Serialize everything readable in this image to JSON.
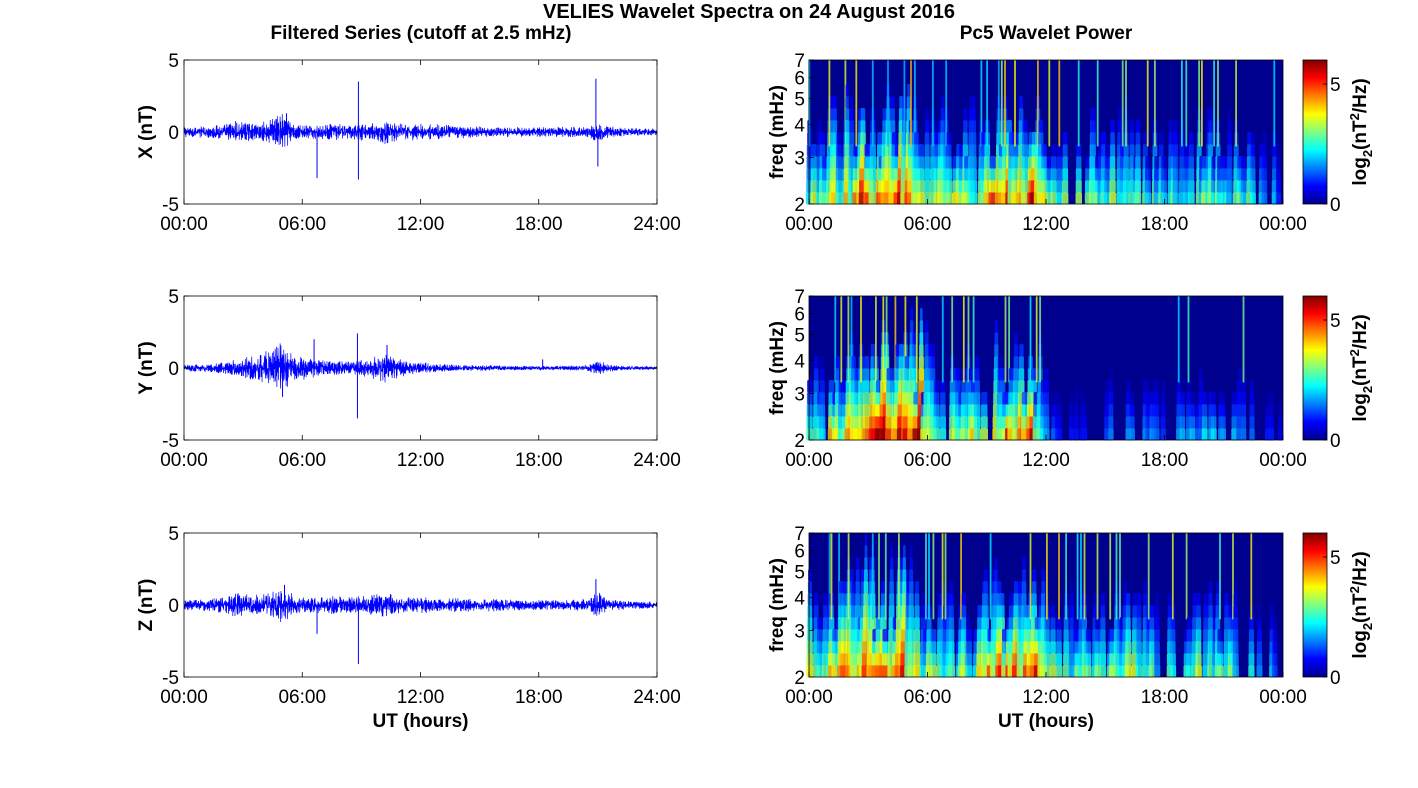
{
  "figure": {
    "title": "VELIES Wavelet Spectra on 24 August 2016",
    "left_column_title": "Filtered Series (cutoff at 2.5 mHz)",
    "right_column_title": "Pc5 Wavelet Power"
  },
  "chart_data": [
    {
      "type": "line",
      "panel": "time-series-x",
      "ylabel": "X (nT)",
      "xlabel": "",
      "ylim": [
        -5,
        5
      ],
      "yticks": [
        "-5",
        "0",
        "5"
      ],
      "xticks": [
        "00:00",
        "06:00",
        "12:00",
        "18:00",
        "24:00"
      ],
      "xrange_hours": [
        0,
        24
      ],
      "series": [
        {
          "color": "#0000ff",
          "envelope": [
            [
              0,
              0.3
            ],
            [
              1,
              0.35
            ],
            [
              2,
              0.45
            ],
            [
              2.6,
              0.7
            ],
            [
              3.5,
              0.5
            ],
            [
              4.3,
              0.7
            ],
            [
              5,
              1.1
            ],
            [
              5.6,
              0.5
            ],
            [
              6.5,
              0.4
            ],
            [
              7.5,
              0.5
            ],
            [
              8.5,
              0.45
            ],
            [
              9.5,
              0.55
            ],
            [
              10.2,
              0.75
            ],
            [
              11,
              0.5
            ],
            [
              12,
              0.5
            ],
            [
              13,
              0.45
            ],
            [
              14,
              0.4
            ],
            [
              15,
              0.35
            ],
            [
              16.5,
              0.3
            ],
            [
              17.5,
              0.3
            ],
            [
              18.5,
              0.3
            ],
            [
              19.5,
              0.3
            ],
            [
              20.5,
              0.35
            ],
            [
              21,
              0.7
            ],
            [
              21.5,
              0.35
            ],
            [
              22.5,
              0.25
            ],
            [
              24,
              0.2
            ]
          ],
          "spikes": [
            [
              6.75,
              -3.2
            ],
            [
              8.85,
              3.5
            ],
            [
              8.85,
              -3.3
            ],
            [
              20.9,
              3.7
            ],
            [
              21.0,
              -2.4
            ],
            [
              5.2,
              1.3
            ]
          ]
        }
      ]
    },
    {
      "type": "heatmap",
      "panel": "wavelet-x",
      "ylabel": "freq (mHz)",
      "xlabel": "",
      "ylim": [
        2,
        7
      ],
      "yticks": [
        "2",
        "3",
        "4",
        "5",
        "6",
        "7"
      ],
      "xticks": [
        "00:00",
        "06:00",
        "12:00",
        "18:00",
        "00:00"
      ],
      "xrange_hours": [
        0,
        24
      ],
      "colorbar": {
        "label": "log2(nT2/Hz)",
        "label_main": "log",
        "label_sub": "2",
        "label_rest": "(nT",
        "label_sup": "2",
        "label_end": "/Hz)",
        "ticks": [
          "0",
          "5"
        ],
        "range": [
          0,
          6
        ]
      },
      "level_profile": [
        [
          0,
          0.6
        ],
        [
          2,
          0.75
        ],
        [
          3,
          0.95
        ],
        [
          5,
          0.9
        ],
        [
          6,
          0.55
        ],
        [
          8,
          0.65
        ],
        [
          10,
          0.85
        ],
        [
          11.5,
          0.95
        ],
        [
          12,
          0.55
        ],
        [
          14,
          0.5
        ],
        [
          16,
          0.6
        ],
        [
          18,
          0.45
        ],
        [
          20,
          0.55
        ],
        [
          22,
          0.5
        ],
        [
          24,
          0.25
        ]
      ]
    },
    {
      "type": "line",
      "panel": "time-series-y",
      "ylabel": "Y (nT)",
      "xlabel": "",
      "ylim": [
        -5,
        5
      ],
      "yticks": [
        "-5",
        "0",
        "5"
      ],
      "xticks": [
        "00:00",
        "06:00",
        "12:00",
        "18:00",
        "24:00"
      ],
      "xrange_hours": [
        0,
        24
      ],
      "series": [
        {
          "color": "#0000ff",
          "envelope": [
            [
              0,
              0.2
            ],
            [
              1,
              0.25
            ],
            [
              2,
              0.35
            ],
            [
              3,
              0.6
            ],
            [
              4,
              0.9
            ],
            [
              5,
              1.6
            ],
            [
              5.5,
              0.8
            ],
            [
              6.5,
              0.6
            ],
            [
              7.5,
              0.45
            ],
            [
              8.5,
              0.4
            ],
            [
              9.5,
              0.6
            ],
            [
              10.3,
              0.9
            ],
            [
              11,
              0.5
            ],
            [
              12,
              0.35
            ],
            [
              13,
              0.25
            ],
            [
              14,
              0.2
            ],
            [
              16,
              0.15
            ],
            [
              18,
              0.12
            ],
            [
              20,
              0.15
            ],
            [
              21,
              0.4
            ],
            [
              22,
              0.15
            ],
            [
              24,
              0.1
            ]
          ],
          "spikes": [
            [
              6.6,
              2.0
            ],
            [
              8.8,
              2.4
            ],
            [
              8.8,
              -3.5
            ],
            [
              10.3,
              1.6
            ],
            [
              18.2,
              0.6
            ],
            [
              5.0,
              -2.0
            ]
          ]
        }
      ]
    },
    {
      "type": "heatmap",
      "panel": "wavelet-y",
      "ylabel": "freq (mHz)",
      "xlabel": "",
      "ylim": [
        2,
        7
      ],
      "yticks": [
        "2",
        "3",
        "4",
        "5",
        "6",
        "7"
      ],
      "xticks": [
        "00:00",
        "06:00",
        "12:00",
        "18:00",
        "00:00"
      ],
      "xrange_hours": [
        0,
        24
      ],
      "colorbar": {
        "label": "log2(nT2/Hz)",
        "label_main": "log",
        "label_sub": "2",
        "label_rest": "(nT",
        "label_sup": "2",
        "label_end": "/Hz)",
        "ticks": [
          "0",
          "5"
        ],
        "range": [
          0,
          6
        ]
      },
      "level_profile": [
        [
          0,
          0.55
        ],
        [
          2,
          0.7
        ],
        [
          3.5,
          0.95
        ],
        [
          5,
          1.0
        ],
        [
          5.8,
          0.95
        ],
        [
          6.5,
          0.5
        ],
        [
          8,
          0.6
        ],
        [
          10,
          0.85
        ],
        [
          11.5,
          0.9
        ],
        [
          12,
          0.5
        ],
        [
          12.5,
          0.15
        ],
        [
          14,
          0.15
        ],
        [
          16,
          0.3
        ],
        [
          18,
          0.25
        ],
        [
          20,
          0.4
        ],
        [
          22,
          0.3
        ],
        [
          24,
          0.1
        ]
      ]
    },
    {
      "type": "line",
      "panel": "time-series-z",
      "ylabel": "Z (nT)",
      "xlabel": "UT (hours)",
      "ylim": [
        -5,
        5
      ],
      "yticks": [
        "-5",
        "0",
        "5"
      ],
      "xticks": [
        "00:00",
        "06:00",
        "12:00",
        "18:00",
        "24:00"
      ],
      "xrange_hours": [
        0,
        24
      ],
      "series": [
        {
          "color": "#0000ff",
          "envelope": [
            [
              0,
              0.3
            ],
            [
              1,
              0.35
            ],
            [
              2,
              0.5
            ],
            [
              2.6,
              0.8
            ],
            [
              3.5,
              0.6
            ],
            [
              4.3,
              0.7
            ],
            [
              5,
              1.2
            ],
            [
              5.6,
              0.55
            ],
            [
              6.5,
              0.45
            ],
            [
              7.5,
              0.55
            ],
            [
              8.5,
              0.5
            ],
            [
              9.5,
              0.6
            ],
            [
              10.2,
              0.75
            ],
            [
              11,
              0.5
            ],
            [
              12,
              0.5
            ],
            [
              13,
              0.45
            ],
            [
              14,
              0.4
            ],
            [
              15,
              0.4
            ],
            [
              16.5,
              0.35
            ],
            [
              17.5,
              0.3
            ],
            [
              18.5,
              0.3
            ],
            [
              19.5,
              0.3
            ],
            [
              20.5,
              0.4
            ],
            [
              21,
              0.8
            ],
            [
              21.5,
              0.35
            ],
            [
              22.5,
              0.25
            ],
            [
              24,
              0.2
            ]
          ],
          "spikes": [
            [
              6.75,
              -2.0
            ],
            [
              8.85,
              -4.1
            ],
            [
              20.9,
              1.8
            ],
            [
              5.1,
              1.4
            ]
          ]
        }
      ]
    },
    {
      "type": "heatmap",
      "panel": "wavelet-z",
      "ylabel": "freq (mHz)",
      "xlabel": "UT (hours)",
      "ylim": [
        2,
        7
      ],
      "yticks": [
        "2",
        "3",
        "4",
        "5",
        "6",
        "7"
      ],
      "xticks": [
        "00:00",
        "06:00",
        "12:00",
        "18:00",
        "00:00"
      ],
      "xrange_hours": [
        0,
        24
      ],
      "colorbar": {
        "label": "log2(nT2/Hz)",
        "label_main": "log",
        "label_sub": "2",
        "label_rest": "(nT",
        "label_sup": "2",
        "label_end": "/Hz)",
        "ticks": [
          "0",
          "5"
        ],
        "range": [
          0,
          6
        ]
      },
      "level_profile": [
        [
          0,
          0.6
        ],
        [
          2,
          0.75
        ],
        [
          3,
          0.95
        ],
        [
          5,
          0.9
        ],
        [
          6,
          0.55
        ],
        [
          8,
          0.65
        ],
        [
          10,
          0.85
        ],
        [
          11.5,
          0.95
        ],
        [
          12,
          0.55
        ],
        [
          14,
          0.5
        ],
        [
          16,
          0.6
        ],
        [
          18,
          0.45
        ],
        [
          20,
          0.55
        ],
        [
          22,
          0.5
        ],
        [
          24,
          0.25
        ]
      ]
    }
  ]
}
